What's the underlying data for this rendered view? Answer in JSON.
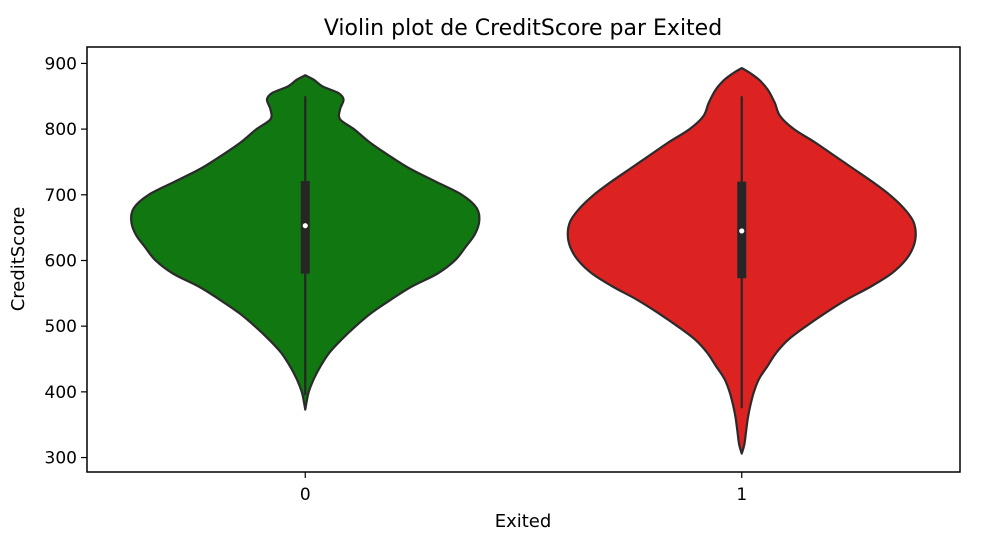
{
  "chart_data": {
    "type": "violin",
    "title": "Violin plot de CreditScore par Exited",
    "xlabel": "Exited",
    "ylabel": "CreditScore",
    "categories": [
      "0",
      "1"
    ],
    "ylim": [
      278,
      925
    ],
    "yticks": [
      300,
      400,
      500,
      600,
      700,
      800,
      900
    ],
    "grid": false,
    "violins": [
      {
        "category": "0",
        "color": "#117711",
        "min": 373,
        "max": 882,
        "q1": 580,
        "median": 653,
        "q3": 721,
        "whisker_low": 395,
        "whisker_high": 850,
        "profile": [
          [
            373,
            0.0
          ],
          [
            385,
            0.008
          ],
          [
            400,
            0.02
          ],
          [
            420,
            0.05
          ],
          [
            440,
            0.09
          ],
          [
            460,
            0.14
          ],
          [
            480,
            0.21
          ],
          [
            500,
            0.29
          ],
          [
            520,
            0.38
          ],
          [
            540,
            0.49
          ],
          [
            560,
            0.61
          ],
          [
            580,
            0.76
          ],
          [
            600,
            0.86
          ],
          [
            620,
            0.92
          ],
          [
            640,
            0.975
          ],
          [
            660,
            1.0
          ],
          [
            680,
            0.985
          ],
          [
            700,
            0.9
          ],
          [
            720,
            0.75
          ],
          [
            740,
            0.6
          ],
          [
            760,
            0.48
          ],
          [
            780,
            0.37
          ],
          [
            800,
            0.28
          ],
          [
            815,
            0.2
          ],
          [
            830,
            0.2
          ],
          [
            845,
            0.22
          ],
          [
            855,
            0.19
          ],
          [
            865,
            0.1
          ],
          [
            875,
            0.05
          ],
          [
            882,
            0.0
          ]
        ]
      },
      {
        "category": "1",
        "color": "#dd2222",
        "min": 306,
        "max": 893,
        "q1": 573,
        "median": 645,
        "q3": 720,
        "whisker_low": 375,
        "whisker_high": 850,
        "profile": [
          [
            306,
            0.0
          ],
          [
            320,
            0.015
          ],
          [
            340,
            0.025
          ],
          [
            360,
            0.035
          ],
          [
            380,
            0.05
          ],
          [
            400,
            0.07
          ],
          [
            420,
            0.1
          ],
          [
            440,
            0.15
          ],
          [
            460,
            0.2
          ],
          [
            480,
            0.27
          ],
          [
            500,
            0.37
          ],
          [
            520,
            0.48
          ],
          [
            540,
            0.6
          ],
          [
            560,
            0.74
          ],
          [
            580,
            0.86
          ],
          [
            600,
            0.94
          ],
          [
            620,
            0.985
          ],
          [
            640,
            1.0
          ],
          [
            660,
            0.985
          ],
          [
            680,
            0.93
          ],
          [
            700,
            0.85
          ],
          [
            720,
            0.75
          ],
          [
            740,
            0.64
          ],
          [
            760,
            0.53
          ],
          [
            780,
            0.42
          ],
          [
            800,
            0.3
          ],
          [
            820,
            0.22
          ],
          [
            840,
            0.19
          ],
          [
            860,
            0.15
          ],
          [
            875,
            0.1
          ],
          [
            885,
            0.05
          ],
          [
            893,
            0.0
          ]
        ]
      }
    ]
  }
}
